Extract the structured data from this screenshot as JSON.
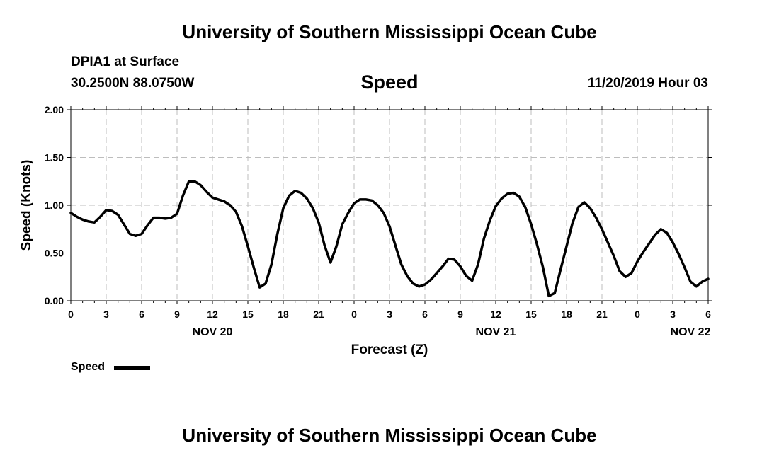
{
  "header": {
    "title": "University of Southern Mississippi Ocean Cube",
    "station": "DPIA1 at Surface",
    "coords": "30.2500N 88.0750W",
    "variable": "Speed",
    "timestamp": "11/20/2019 Hour 03"
  },
  "footer": {
    "title": "University of Southern Mississippi Ocean Cube"
  },
  "legend": {
    "label": "Speed"
  },
  "chart_data": {
    "type": "line",
    "title": "Speed",
    "ylabel": "Speed (Knots)",
    "xlabel": "Forecast (Z)",
    "ylim": [
      0,
      2
    ],
    "yticks": [
      "0.00",
      "0.50",
      "1.00",
      "1.50",
      "2.00"
    ],
    "xlim": [
      0,
      54
    ],
    "xticks": [
      {
        "h": 0,
        "label": "0"
      },
      {
        "h": 3,
        "label": "3"
      },
      {
        "h": 6,
        "label": "6"
      },
      {
        "h": 9,
        "label": "9"
      },
      {
        "h": 12,
        "label": "12"
      },
      {
        "h": 15,
        "label": "15"
      },
      {
        "h": 18,
        "label": "18"
      },
      {
        "h": 21,
        "label": "21"
      },
      {
        "h": 24,
        "label": "0"
      },
      {
        "h": 27,
        "label": "3"
      },
      {
        "h": 30,
        "label": "6"
      },
      {
        "h": 33,
        "label": "9"
      },
      {
        "h": 36,
        "label": "12"
      },
      {
        "h": 39,
        "label": "15"
      },
      {
        "h": 42,
        "label": "18"
      },
      {
        "h": 45,
        "label": "21"
      },
      {
        "h": 48,
        "label": "0"
      },
      {
        "h": 51,
        "label": "3"
      },
      {
        "h": 54,
        "label": "6"
      }
    ],
    "day_labels": [
      {
        "h": 12,
        "label": "NOV 20"
      },
      {
        "h": 36,
        "label": "NOV 21"
      },
      {
        "h": 52.5,
        "label": "NOV 22"
      }
    ],
    "grid": true,
    "series": [
      {
        "name": "Speed",
        "color": "#000000",
        "x": [
          0,
          0.5,
          1,
          1.5,
          2,
          2.5,
          3,
          3.5,
          4,
          4.5,
          5,
          5.5,
          6,
          6.5,
          7,
          7.5,
          8,
          8.5,
          9,
          9.5,
          10,
          10.5,
          11,
          11.5,
          12,
          12.5,
          13,
          13.5,
          14,
          14.5,
          15,
          15.5,
          16,
          16.5,
          17,
          17.5,
          18,
          18.5,
          19,
          19.5,
          20,
          20.5,
          21,
          21.5,
          22,
          22.5,
          23,
          23.5,
          24,
          24.5,
          25,
          25.5,
          26,
          26.5,
          27,
          27.5,
          28,
          28.5,
          29,
          29.5,
          30,
          30.5,
          31,
          31.5,
          32,
          32.5,
          33,
          33.5,
          34,
          34.5,
          35,
          35.5,
          36,
          36.5,
          37,
          37.5,
          38,
          38.5,
          39,
          39.5,
          40,
          40.5,
          41,
          41.5,
          42,
          42.5,
          43,
          43.5,
          44,
          44.5,
          45,
          45.5,
          46,
          46.5,
          47,
          47.5,
          48,
          48.5,
          49,
          49.5,
          50,
          50.5,
          51,
          51.5,
          52,
          52.5,
          53,
          53.5,
          54
        ],
        "values": [
          0.92,
          0.88,
          0.85,
          0.83,
          0.82,
          0.88,
          0.95,
          0.94,
          0.9,
          0.8,
          0.7,
          0.68,
          0.7,
          0.79,
          0.87,
          0.87,
          0.86,
          0.87,
          0.91,
          1.1,
          1.25,
          1.25,
          1.21,
          1.14,
          1.08,
          1.06,
          1.04,
          1.0,
          0.93,
          0.78,
          0.57,
          0.35,
          0.14,
          0.18,
          0.38,
          0.7,
          0.97,
          1.1,
          1.15,
          1.13,
          1.07,
          0.97,
          0.82,
          0.58,
          0.4,
          0.57,
          0.8,
          0.92,
          1.02,
          1.06,
          1.06,
          1.05,
          1.0,
          0.92,
          0.78,
          0.58,
          0.38,
          0.26,
          0.18,
          0.15,
          0.17,
          0.22,
          0.29,
          0.36,
          0.44,
          0.43,
          0.36,
          0.26,
          0.21,
          0.38,
          0.65,
          0.84,
          0.99,
          1.07,
          1.12,
          1.13,
          1.09,
          0.98,
          0.8,
          0.59,
          0.35,
          0.05,
          0.08,
          0.33,
          0.57,
          0.81,
          0.98,
          1.03,
          0.97,
          0.87,
          0.75,
          0.61,
          0.47,
          0.31,
          0.25,
          0.29,
          0.41,
          0.51,
          0.6,
          0.69,
          0.75,
          0.71,
          0.61,
          0.49,
          0.35,
          0.2,
          0.15,
          0.2,
          0.23
        ]
      }
    ]
  }
}
